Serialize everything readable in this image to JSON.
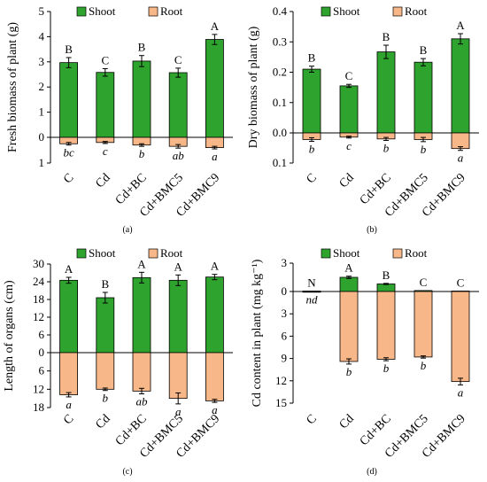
{
  "colors": {
    "shoot": "#2ea32e",
    "root": "#f8b788",
    "edge": "#000000"
  },
  "legend": {
    "shoot": "Shoot",
    "root": "Root"
  },
  "chart_data": [
    {
      "id": "a",
      "type": "bar",
      "caption": "(a)",
      "ylabel": "Fresh biomass of plant (g)",
      "categories": [
        "C",
        "Cd",
        "Cd+BC",
        "Cd+BMC5",
        "Cd+BMC9"
      ],
      "up": {
        "min": 0,
        "max": 5,
        "ticks": [
          0,
          1,
          2,
          3,
          4,
          5
        ],
        "tick_labels": [
          "0",
          "1",
          "2",
          "3",
          "4",
          "5"
        ]
      },
      "down": {
        "max": 1,
        "ticks": [
          1
        ],
        "tick_labels": [
          "1"
        ]
      },
      "series": [
        {
          "name": "Shoot",
          "values": [
            2.97,
            2.58,
            3.03,
            2.57,
            3.89
          ],
          "errors": [
            0.2,
            0.15,
            0.22,
            0.18,
            0.2
          ],
          "letters": [
            "B",
            "C",
            "B",
            "C",
            "A"
          ]
        },
        {
          "name": "Root",
          "values": [
            0.25,
            0.2,
            0.3,
            0.35,
            0.4
          ],
          "errors": [
            0.05,
            0.04,
            0.05,
            0.07,
            0.05
          ],
          "letters": [
            "bc",
            "c",
            "b",
            "ab",
            "a"
          ]
        }
      ]
    },
    {
      "id": "b",
      "type": "bar",
      "caption": "(b)",
      "ylabel": "Dry biomass of plant (g)",
      "categories": [
        "C",
        "Cd",
        "Cd+BC",
        "Cd+BMC5",
        "Cd+BMC9"
      ],
      "up": {
        "min": 0,
        "max": 0.4,
        "ticks": [
          0,
          0.1,
          0.2,
          0.3,
          0.4
        ],
        "tick_labels": [
          "0.0",
          "0.1",
          "0.2",
          "0.3",
          "0.4"
        ]
      },
      "down": {
        "max": 0.1,
        "ticks": [
          0.1
        ],
        "tick_labels": [
          "0.1"
        ]
      },
      "series": [
        {
          "name": "Shoot",
          "values": [
            0.21,
            0.155,
            0.267,
            0.233,
            0.31
          ],
          "errors": [
            0.01,
            0.005,
            0.022,
            0.012,
            0.017
          ],
          "letters": [
            "B",
            "C",
            "B",
            "B",
            "A"
          ]
        },
        {
          "name": "Root",
          "values": [
            0.022,
            0.014,
            0.02,
            0.022,
            0.052
          ],
          "errors": [
            0.006,
            0.003,
            0.005,
            0.007,
            0.006
          ],
          "letters": [
            "b",
            "c",
            "b",
            "b",
            "a"
          ]
        }
      ]
    },
    {
      "id": "c",
      "type": "bar",
      "caption": "(c)",
      "ylabel": "Length of organs (cm)",
      "categories": [
        "C",
        "Cd",
        "Cd+BC",
        "Cd+BMC5",
        "Cd+BMC9"
      ],
      "up": {
        "min": 0,
        "max": 30,
        "ticks": [
          0,
          6,
          12,
          18,
          24,
          30
        ],
        "tick_labels": [
          "0",
          "6",
          "12",
          "18",
          "24",
          "30"
        ]
      },
      "down": {
        "max": 18,
        "ticks": [
          6,
          12,
          18
        ],
        "tick_labels": [
          "6",
          "12",
          "18"
        ]
      },
      "series": [
        {
          "name": "Shoot",
          "values": [
            24.5,
            18.6,
            25.4,
            24.5,
            25.6
          ],
          "errors": [
            1.0,
            1.8,
            1.8,
            1.8,
            0.9
          ],
          "letters": [
            "A",
            "B",
            "A",
            "A",
            "A"
          ]
        },
        {
          "name": "Root",
          "values": [
            13.8,
            12.0,
            12.6,
            15.0,
            15.8
          ],
          "errors": [
            0.7,
            0.4,
            0.9,
            1.8,
            0.5
          ],
          "letters": [
            "a",
            "b",
            "ab",
            "a",
            "a"
          ]
        }
      ]
    },
    {
      "id": "d",
      "type": "bar",
      "caption": "(d)",
      "ylabel": "Cd content in plant (mg kg⁻¹)",
      "categories": [
        "C",
        "Cd",
        "Cd+BC",
        "Cd+BMC5",
        "Cd+BMC9"
      ],
      "up": {
        "min": 0,
        "max": 3,
        "ticks": [
          0,
          3
        ],
        "tick_labels": [
          "0",
          "3"
        ]
      },
      "down": {
        "max": 15,
        "ticks": [
          3,
          6,
          9,
          12,
          15
        ],
        "tick_labels": [
          "3",
          "6",
          "9",
          "12",
          "15"
        ]
      },
      "series": [
        {
          "name": "Shoot",
          "values": [
            0.05,
            1.5,
            0.8,
            0.1,
            0.05
          ],
          "errors": [
            0,
            0.12,
            0.06,
            0,
            0
          ],
          "letters": [
            "N",
            "A",
            "B",
            "C",
            "C"
          ]
        },
        {
          "name": "Root",
          "values": [
            0.05,
            9.4,
            9.1,
            8.8,
            12.1
          ],
          "errors": [
            0,
            0.35,
            0.2,
            0.15,
            0.45
          ],
          "letters": [
            "nd",
            "b",
            "b",
            "b",
            "a"
          ]
        }
      ]
    }
  ]
}
